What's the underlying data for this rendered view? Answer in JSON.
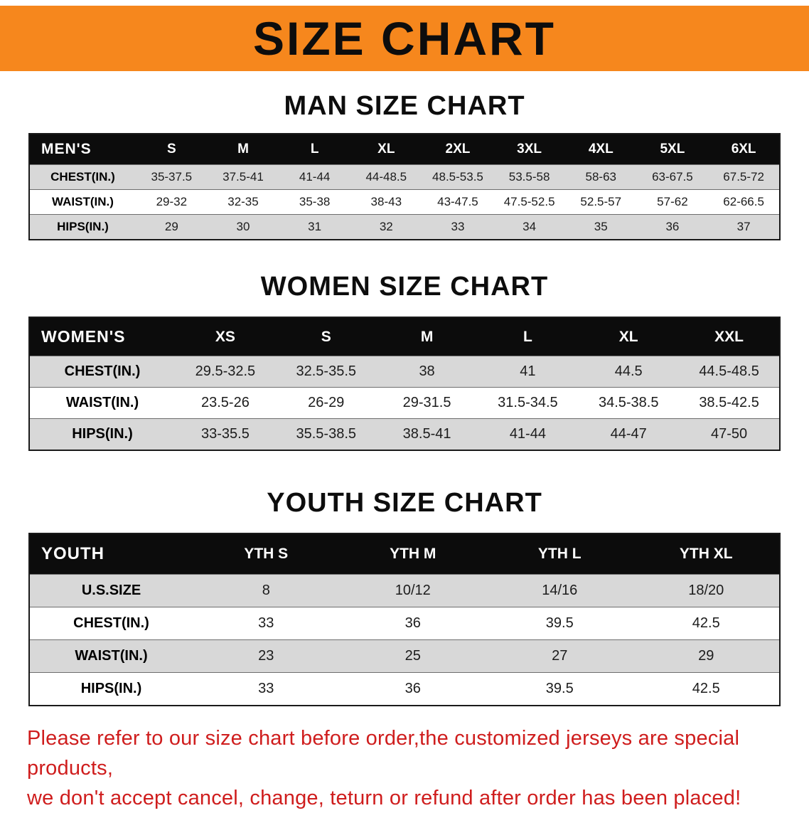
{
  "banner": {
    "title": "SIZE CHART"
  },
  "sections": [
    {
      "id": "men",
      "heading": "MAN SIZE CHART",
      "table": {
        "header": [
          "MEN'S",
          "S",
          "M",
          "L",
          "XL",
          "2XL",
          "3XL",
          "4XL",
          "5XL",
          "6XL"
        ],
        "rows": [
          [
            "CHEST(IN.)",
            "35-37.5",
            "37.5-41",
            "41-44",
            "44-48.5",
            "48.5-53.5",
            "53.5-58",
            "58-63",
            "63-67.5",
            "67.5-72"
          ],
          [
            "WAIST(IN.)",
            "29-32",
            "32-35",
            "35-38",
            "38-43",
            "43-47.5",
            "47.5-52.5",
            "52.5-57",
            "57-62",
            "62-66.5"
          ],
          [
            "HIPS(IN.)",
            "29",
            "30",
            "31",
            "32",
            "33",
            "34",
            "35",
            "36",
            "37"
          ]
        ]
      }
    },
    {
      "id": "women",
      "heading": "WOMEN SIZE CHART",
      "table": {
        "header": [
          "WOMEN'S",
          "XS",
          "S",
          "M",
          "L",
          "XL",
          "XXL"
        ],
        "rows": [
          [
            "CHEST(IN.)",
            "29.5-32.5",
            "32.5-35.5",
            "38",
            "41",
            "44.5",
            "44.5-48.5"
          ],
          [
            "WAIST(IN.)",
            "23.5-26",
            "26-29",
            "29-31.5",
            "31.5-34.5",
            "34.5-38.5",
            "38.5-42.5"
          ],
          [
            "HIPS(IN.)",
            "33-35.5",
            "35.5-38.5",
            "38.5-41",
            "41-44",
            "44-47",
            "47-50"
          ]
        ]
      }
    },
    {
      "id": "youth",
      "heading": "YOUTH SIZE CHART",
      "table": {
        "header": [
          "YOUTH",
          "YTH S",
          "YTH M",
          "YTH L",
          "YTH XL"
        ],
        "rows": [
          [
            "U.S.SIZE",
            "8",
            "10/12",
            "14/16",
            "18/20"
          ],
          [
            "CHEST(IN.)",
            "33",
            "36",
            "39.5",
            "42.5"
          ],
          [
            "WAIST(IN.)",
            "23",
            "25",
            "27",
            "29"
          ],
          [
            "HIPS(IN.)",
            "33",
            "36",
            "39.5",
            "42.5"
          ]
        ]
      }
    }
  ],
  "disclaimer": {
    "line1": "Please refer to our size chart before order,the customized jerseys are special products,",
    "line2": "we don't accept cancel, change, teturn or refund after order has been placed!"
  },
  "colors": {
    "banner_bg": "#f6871d",
    "table_header_bg": "#0c0c0c",
    "row_stripe_bg": "#d8d8d8",
    "disclaimer_text": "#cf1d1d"
  }
}
